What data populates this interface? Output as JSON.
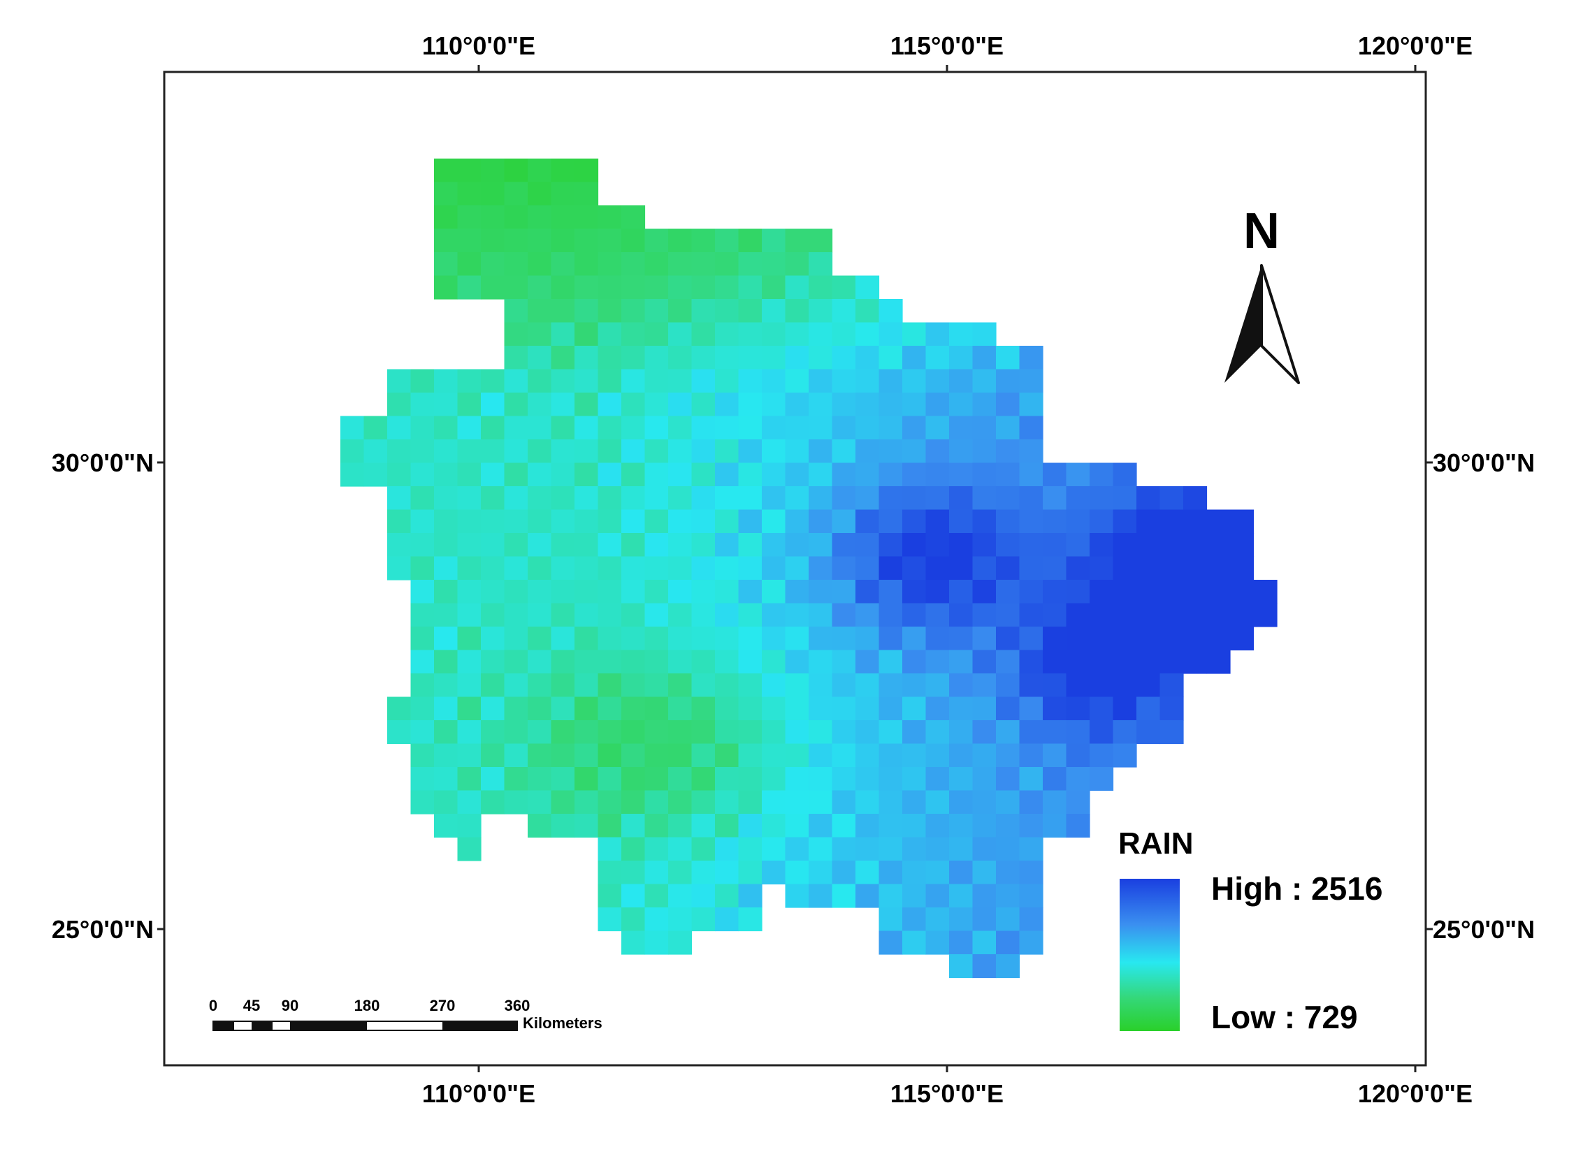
{
  "map": {
    "graticule": {
      "lon_labels": [
        "110°0'0\"E",
        "115°0'0\"E",
        "120°0'0\"E"
      ],
      "lat_labels": [
        "30°0'0\"N",
        "25°0'0\"N"
      ]
    },
    "north_arrow_label": "N",
    "legend": {
      "title": "RAIN",
      "high_label": "High : 2516",
      "low_label": "Low : 729",
      "ramp_colors": [
        "#1a3fe0",
        "#3a8ff0",
        "#28e8f0",
        "#34d87a",
        "#2ad02a"
      ]
    },
    "scale_bar": {
      "tick_labels": [
        "0",
        "45",
        "90",
        "180",
        "270",
        "360"
      ],
      "unit": "Kilometers"
    },
    "colors": {
      "low": "#2ad02a",
      "mid": "#28e8f0",
      "high": "#1a3fe0",
      "frame": "#222222"
    }
  }
}
